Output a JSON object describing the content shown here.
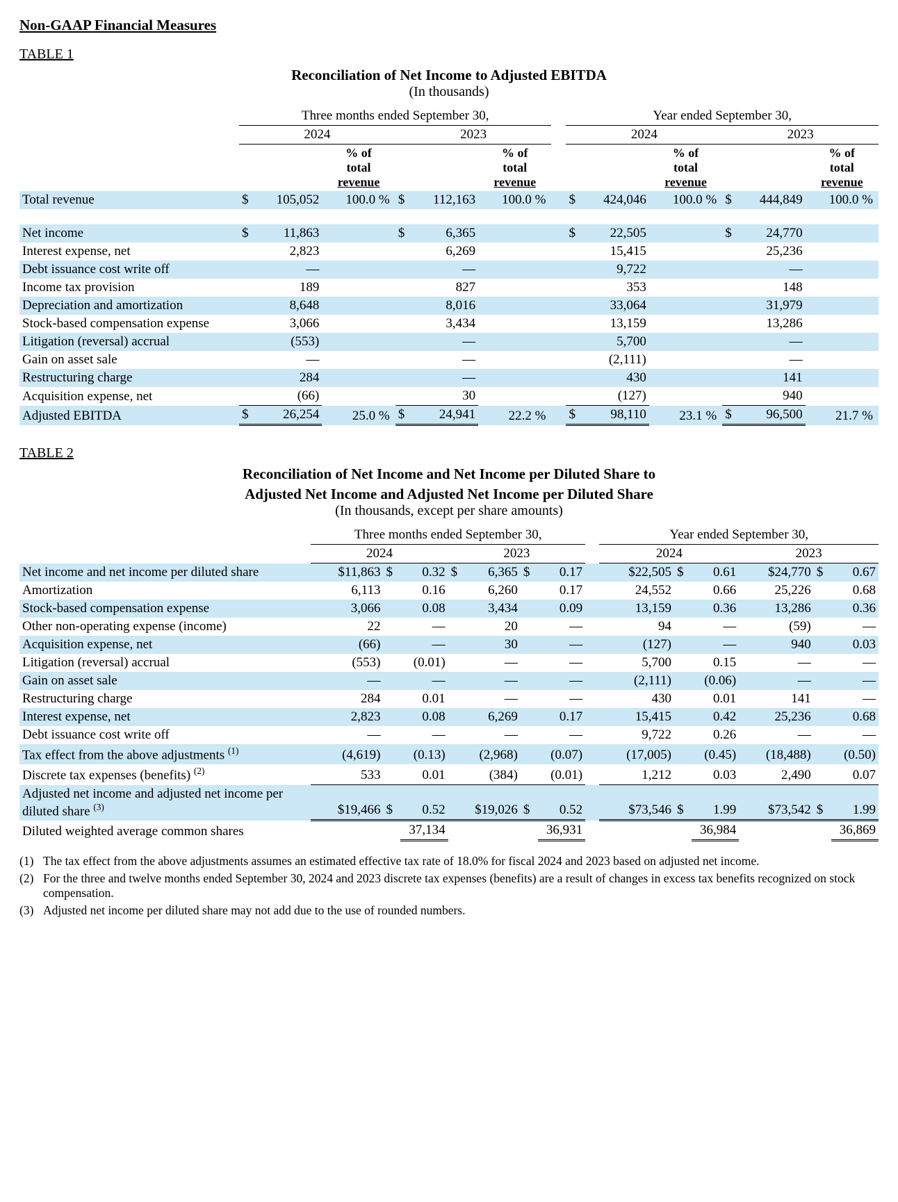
{
  "heading": "Non-GAAP Financial Measures",
  "table1": {
    "label": "TABLE 1",
    "title": "Reconciliation of Net Income to Adjusted EBITDA",
    "subtitle": "(In thousands)",
    "period_heads": [
      "Three months ended September 30,",
      "Year ended September 30,"
    ],
    "years": [
      "2024",
      "2023",
      "2024",
      "2023"
    ],
    "pct_head_lines": [
      "% of",
      "total",
      "revenue"
    ],
    "rows": [
      {
        "label": "Total revenue",
        "stripe": true,
        "cur": true,
        "vals": [
          "105,052",
          "112,163",
          "424,046",
          "444,849"
        ],
        "pcts": [
          "100.0 %",
          "100.0 %",
          "100.0 %",
          "100.0 %"
        ],
        "cur_prefix": [
          "$",
          "$",
          "$",
          "$"
        ]
      },
      {
        "label": "",
        "spacer": true
      },
      {
        "label": "Net income",
        "stripe": true,
        "cur": true,
        "vals": [
          "11,863",
          "6,365",
          "22,505",
          "24,770"
        ],
        "pcts": [
          "",
          "",
          "",
          ""
        ],
        "cur_prefix": [
          "$",
          "$",
          "$",
          "$"
        ]
      },
      {
        "label": "Interest expense, net",
        "vals": [
          "2,823",
          "6,269",
          "15,415",
          "25,236"
        ],
        "pcts": [
          "",
          "",
          "",
          ""
        ]
      },
      {
        "label": "Debt issuance cost write off",
        "stripe": true,
        "vals": [
          "—",
          "—",
          "9,722",
          "—"
        ],
        "pcts": [
          "",
          "",
          "",
          ""
        ]
      },
      {
        "label": "Income tax provision",
        "vals": [
          "189",
          "827",
          "353",
          "148"
        ],
        "pcts": [
          "",
          "",
          "",
          ""
        ]
      },
      {
        "label": "Depreciation and amortization",
        "stripe": true,
        "vals": [
          "8,648",
          "8,016",
          "33,064",
          "31,979"
        ],
        "pcts": [
          "",
          "",
          "",
          ""
        ]
      },
      {
        "label": "Stock-based compensation expense",
        "vals": [
          "3,066",
          "3,434",
          "13,159",
          "13,286"
        ],
        "pcts": [
          "",
          "",
          "",
          ""
        ]
      },
      {
        "label": "Litigation (reversal) accrual",
        "stripe": true,
        "vals": [
          "(553)",
          "—",
          "5,700",
          "—"
        ],
        "pcts": [
          "",
          "",
          "",
          ""
        ]
      },
      {
        "label": "Gain on asset sale",
        "vals": [
          "—",
          "—",
          "(2,111)",
          "—"
        ],
        "pcts": [
          "",
          "",
          "",
          ""
        ]
      },
      {
        "label": "Restructuring charge",
        "stripe": true,
        "vals": [
          "284",
          "—",
          "430",
          "141"
        ],
        "pcts": [
          "",
          "",
          "",
          ""
        ]
      },
      {
        "label": "Acquisition expense, net",
        "vals": [
          "(66)",
          "30",
          "(127)",
          "940"
        ],
        "pcts": [
          "",
          "",
          "",
          ""
        ],
        "underline": true
      },
      {
        "label": "Adjusted EBITDA",
        "stripe": true,
        "cur": true,
        "vals": [
          "26,254",
          "24,941",
          "98,110",
          "96,500"
        ],
        "pcts": [
          "25.0 %",
          "22.2 %",
          "23.1 %",
          "21.7 %"
        ],
        "cur_prefix": [
          "$",
          "$",
          "$",
          "$"
        ],
        "dbl": true
      }
    ]
  },
  "table2": {
    "label": "TABLE 2",
    "title_line1": "Reconciliation of Net Income and Net Income per Diluted Share to",
    "title_line2": "Adjusted Net Income and Adjusted Net Income per Diluted Share",
    "subtitle": "(In thousands, except per share amounts)",
    "period_heads": [
      "Three months ended September 30,",
      "Year ended September 30,"
    ],
    "years": [
      "2024",
      "2023",
      "2024",
      "2023"
    ],
    "rows": [
      {
        "label": "Net income and net income per diluted share",
        "stripe": true,
        "vals": [
          "$11,863",
          "6,365",
          "$22,505",
          "$24,770"
        ],
        "pershare": [
          "0.32",
          "0.17",
          "0.61",
          "0.67"
        ],
        "ps_cur": [
          "$",
          "$",
          "$",
          "$"
        ],
        "mid_cur": [
          "",
          "$",
          "",
          ""
        ]
      },
      {
        "label": "Amortization",
        "vals": [
          "6,113",
          "6,260",
          "24,552",
          "25,226"
        ],
        "pershare": [
          "0.16",
          "0.17",
          "0.66",
          "0.68"
        ]
      },
      {
        "label": "Stock-based compensation expense",
        "stripe": true,
        "vals": [
          "3,066",
          "3,434",
          "13,159",
          "13,286"
        ],
        "pershare": [
          "0.08",
          "0.09",
          "0.36",
          "0.36"
        ]
      },
      {
        "label": "Other non-operating expense (income)",
        "vals": [
          "22",
          "20",
          "94",
          "(59)"
        ],
        "pershare": [
          "—",
          "—",
          "—",
          "—"
        ]
      },
      {
        "label": "Acquisition expense, net",
        "stripe": true,
        "vals": [
          "(66)",
          "30",
          "(127)",
          "940"
        ],
        "pershare": [
          "—",
          "—",
          "—",
          "0.03"
        ]
      },
      {
        "label": "Litigation (reversal) accrual",
        "vals": [
          "(553)",
          "—",
          "5,700",
          "—"
        ],
        "pershare": [
          "(0.01)",
          "—",
          "0.15",
          "—"
        ]
      },
      {
        "label": "Gain on asset sale",
        "stripe": true,
        "vals": [
          "—",
          "—",
          "(2,111)",
          "—"
        ],
        "pershare": [
          "—",
          "—",
          "(0.06)",
          "—"
        ]
      },
      {
        "label": "Restructuring charge",
        "vals": [
          "284",
          "—",
          "430",
          "141"
        ],
        "pershare": [
          "0.01",
          "—",
          "0.01",
          "—"
        ]
      },
      {
        "label": "Interest expense, net",
        "stripe": true,
        "vals": [
          "2,823",
          "6,269",
          "15,415",
          "25,236"
        ],
        "pershare": [
          "0.08",
          "0.17",
          "0.42",
          "0.68"
        ]
      },
      {
        "label": "Debt issuance cost write off",
        "vals": [
          "—",
          "—",
          "9,722",
          "—"
        ],
        "pershare": [
          "—",
          "—",
          "0.26",
          "—"
        ]
      },
      {
        "label": "Tax effect from the above adjustments",
        "sup": "(1)",
        "stripe": true,
        "vals": [
          "(4,619)",
          "(2,968)",
          "(17,005)",
          "(18,488)"
        ],
        "pershare": [
          "(0.13)",
          "(0.07)",
          "(0.45)",
          "(0.50)"
        ]
      },
      {
        "label": "Discrete tax expenses (benefits)",
        "sup": "(2)",
        "vals": [
          "533",
          "(384)",
          "1,212",
          "2,490"
        ],
        "pershare": [
          "0.01",
          "(0.01)",
          "0.03",
          "0.07"
        ],
        "underline": true
      },
      {
        "label": "Adjusted net income and adjusted net income per diluted share",
        "sup": "(3)",
        "stripe": true,
        "vals": [
          "$19,466",
          "$19,026",
          "$73,546",
          "$73,542"
        ],
        "pershare": [
          "0.52",
          "0.52",
          "1.99",
          "1.99"
        ],
        "ps_cur": [
          "$",
          "$",
          "$",
          "$"
        ],
        "dbl": true
      },
      {
        "label": "Diluted weighted average common shares",
        "shares_row": true,
        "vals": [
          "",
          "",
          "",
          ""
        ],
        "pershare": [
          "37,134",
          "36,931",
          "36,984",
          "36,869"
        ],
        "dbl_ps": true
      }
    ],
    "footnotes": [
      "The tax effect from the above adjustments assumes an estimated effective tax rate of 18.0% for fiscal 2024 and 2023 based on adjusted net income.",
      "For the three and twelve months ended September 30, 2024 and 2023 discrete tax expenses (benefits) are a result of changes in excess tax benefits recognized on stock compensation.",
      "Adjusted net income per diluted share may not add due to the use of rounded numbers."
    ]
  }
}
